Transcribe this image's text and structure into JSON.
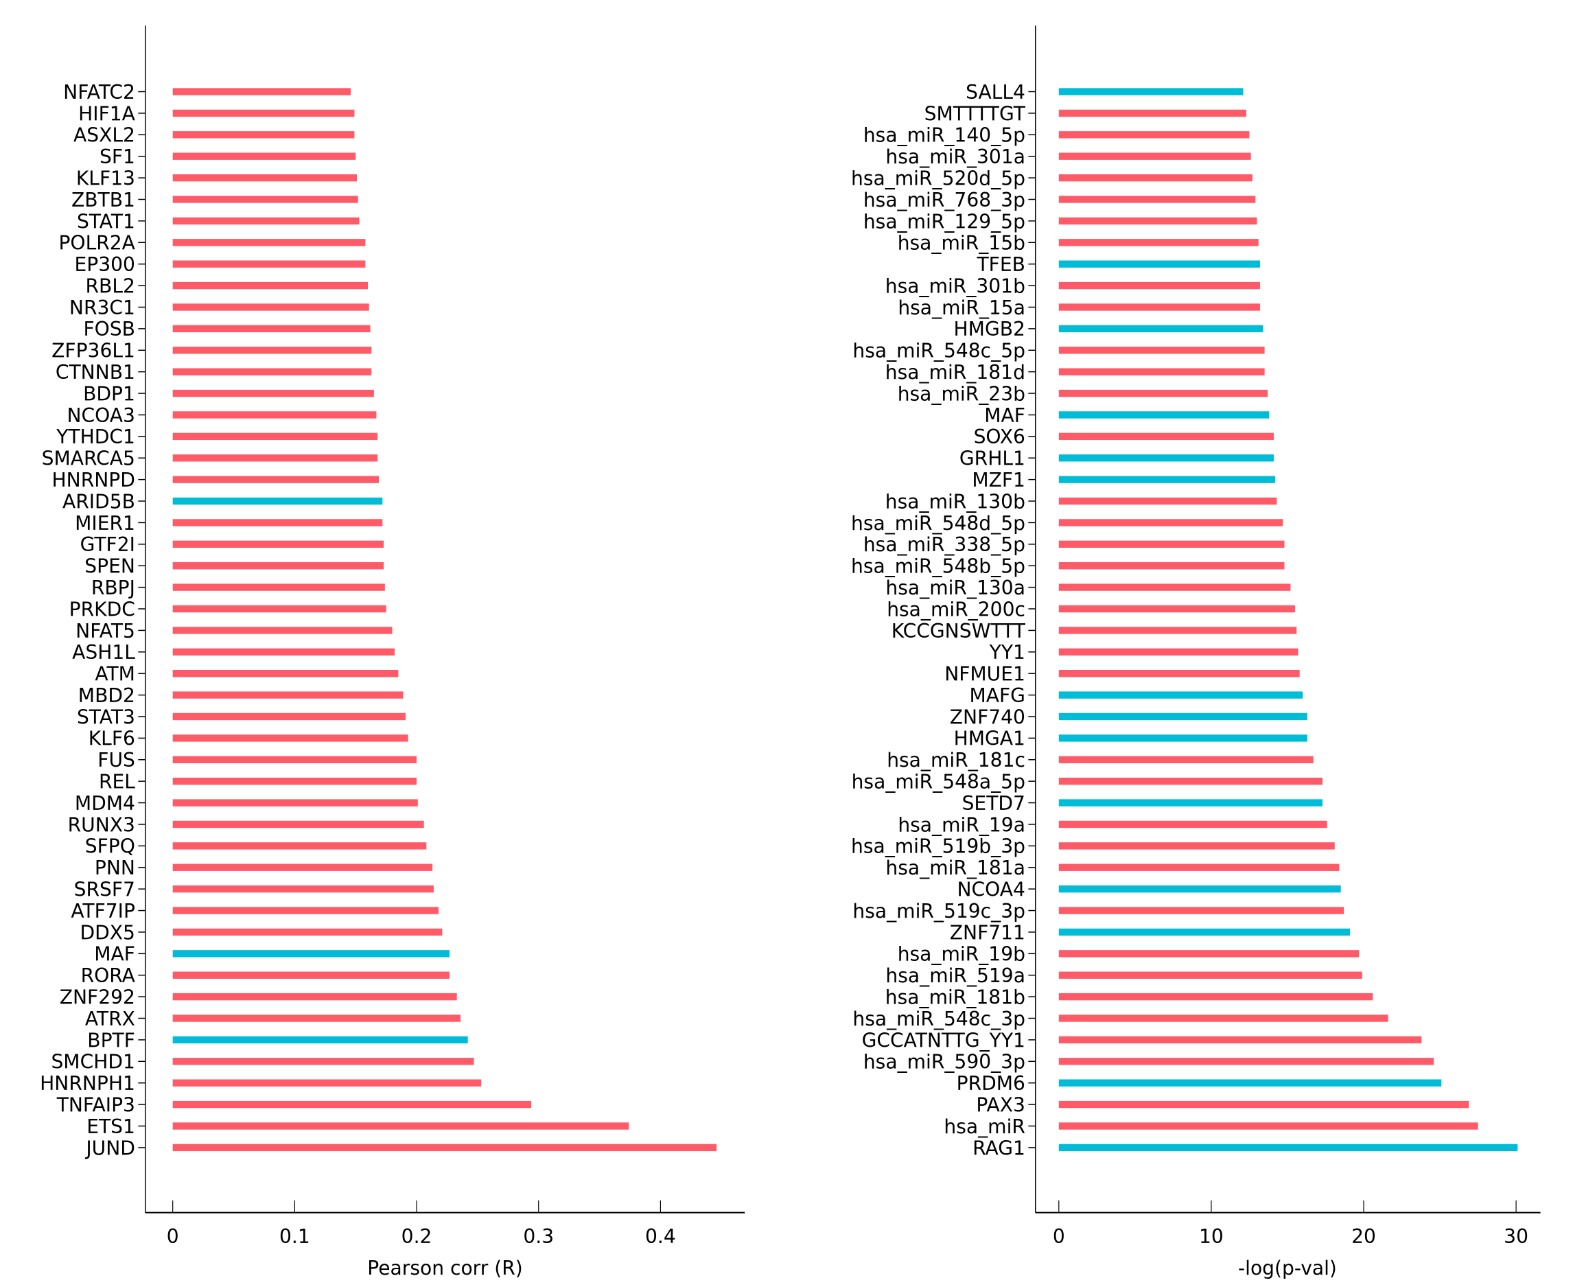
{
  "colors": {
    "red": "#FF5A67",
    "cyan": "#00BCD6"
  },
  "chart_data": [
    {
      "type": "bar",
      "orientation": "horizontal",
      "xlabel": "Pearson corr (R)",
      "xlim": [
        -0.022,
        0.468
      ],
      "xticks": [
        0,
        0.1,
        0.2,
        0.3,
        0.4
      ],
      "xtick_labels": [
        "0",
        "0.1",
        "0.2",
        "0.3",
        "0.4"
      ],
      "categories": [
        "NFATC2",
        "HIF1A",
        "ASXL2",
        "SF1",
        "KLF13",
        "ZBTB1",
        "STAT1",
        "POLR2A",
        "EP300",
        "RBL2",
        "NR3C1",
        "FOSB",
        "ZFP36L1",
        "CTNNB1",
        "BDP1",
        "NCOA3",
        "YTHDC1",
        "SMARCA5",
        "HNRNPD",
        "ARID5B",
        "MIER1",
        "GTF2I",
        "SPEN",
        "RBPJ",
        "PRKDC",
        "NFAT5",
        "ASH1L",
        "ATM",
        "MBD2",
        "STAT3",
        "KLF6",
        "FUS",
        "REL",
        "MDM4",
        "RUNX3",
        "SFPQ",
        "PNN",
        "SRSF7",
        "ATF7IP",
        "DDX5",
        "MAF",
        "RORA",
        "ZNF292",
        "ATRX",
        "BPTF",
        "SMCHD1",
        "HNRNPH1",
        "TNFAIP3",
        "ETS1",
        "JUND"
      ],
      "values": [
        0.146,
        0.149,
        0.149,
        0.15,
        0.151,
        0.152,
        0.153,
        0.158,
        0.158,
        0.16,
        0.161,
        0.162,
        0.163,
        0.163,
        0.165,
        0.167,
        0.168,
        0.168,
        0.169,
        0.172,
        0.172,
        0.173,
        0.173,
        0.174,
        0.175,
        0.18,
        0.182,
        0.185,
        0.189,
        0.191,
        0.193,
        0.2,
        0.2,
        0.201,
        0.206,
        0.208,
        0.213,
        0.214,
        0.218,
        0.221,
        0.227,
        0.227,
        0.233,
        0.236,
        0.242,
        0.247,
        0.253,
        0.294,
        0.374,
        0.446
      ],
      "highlight": [
        "ARID5B",
        "MAF",
        "BPTF"
      ]
    },
    {
      "type": "bar",
      "orientation": "horizontal",
      "xlabel": "-log(p-val)",
      "xlim": [
        -1.5,
        31.6
      ],
      "xticks": [
        0,
        10,
        20,
        30
      ],
      "xtick_labels": [
        "0",
        "10",
        "20",
        "30"
      ],
      "categories": [
        "SALL4",
        "SMTTTTGT",
        "hsa_miR_140_5p",
        "hsa_miR_301a",
        "hsa_miR_520d_5p",
        "hsa_miR_768_3p",
        "hsa_miR_129_5p",
        "hsa_miR_15b",
        "TFEB",
        "hsa_miR_301b",
        "hsa_miR_15a",
        "HMGB2",
        "hsa_miR_548c_5p",
        "hsa_miR_181d",
        "hsa_miR_23b",
        "MAF",
        "SOX6",
        "GRHL1",
        "MZF1",
        "hsa_miR_130b",
        "hsa_miR_548d_5p",
        "hsa_miR_338_5p",
        "hsa_miR_548b_5p",
        "hsa_miR_130a",
        "hsa_miR_200c",
        "KCCGNSWTTT",
        "YY1",
        "NFMUE1",
        "MAFG",
        "ZNF740",
        "HMGA1",
        "hsa_miR_181c",
        "hsa_miR_548a_5p",
        "SETD7",
        "hsa_miR_19a",
        "hsa_miR_519b_3p",
        "hsa_miR_181a",
        "NCOA4",
        "hsa_miR_519c_3p",
        "ZNF711",
        "hsa_miR_19b",
        "hsa_miR_519a",
        "hsa_miR_181b",
        "hsa_miR_548c_3p",
        "GCCATNTTG_YY1",
        "hsa_miR_590_3p",
        "PRDM6",
        "PAX3",
        "hsa_miR",
        "RAG1"
      ],
      "values": [
        12.1,
        12.3,
        12.5,
        12.6,
        12.7,
        12.9,
        13.0,
        13.1,
        13.2,
        13.2,
        13.2,
        13.4,
        13.5,
        13.5,
        13.7,
        13.8,
        14.1,
        14.1,
        14.2,
        14.3,
        14.7,
        14.8,
        14.8,
        15.2,
        15.5,
        15.6,
        15.7,
        15.8,
        16.0,
        16.3,
        16.3,
        16.7,
        17.3,
        17.3,
        17.6,
        18.1,
        18.4,
        18.5,
        18.7,
        19.1,
        19.7,
        19.9,
        20.6,
        21.6,
        23.8,
        24.6,
        25.1,
        26.9,
        27.5,
        30.1
      ],
      "highlight": [
        "SALL4",
        "TFEB",
        "HMGB2",
        "MAF",
        "GRHL1",
        "MZF1",
        "MAFG",
        "ZNF740",
        "HMGA1",
        "SETD7",
        "NCOA4",
        "ZNF711",
        "PRDM6",
        "RAG1"
      ]
    }
  ]
}
